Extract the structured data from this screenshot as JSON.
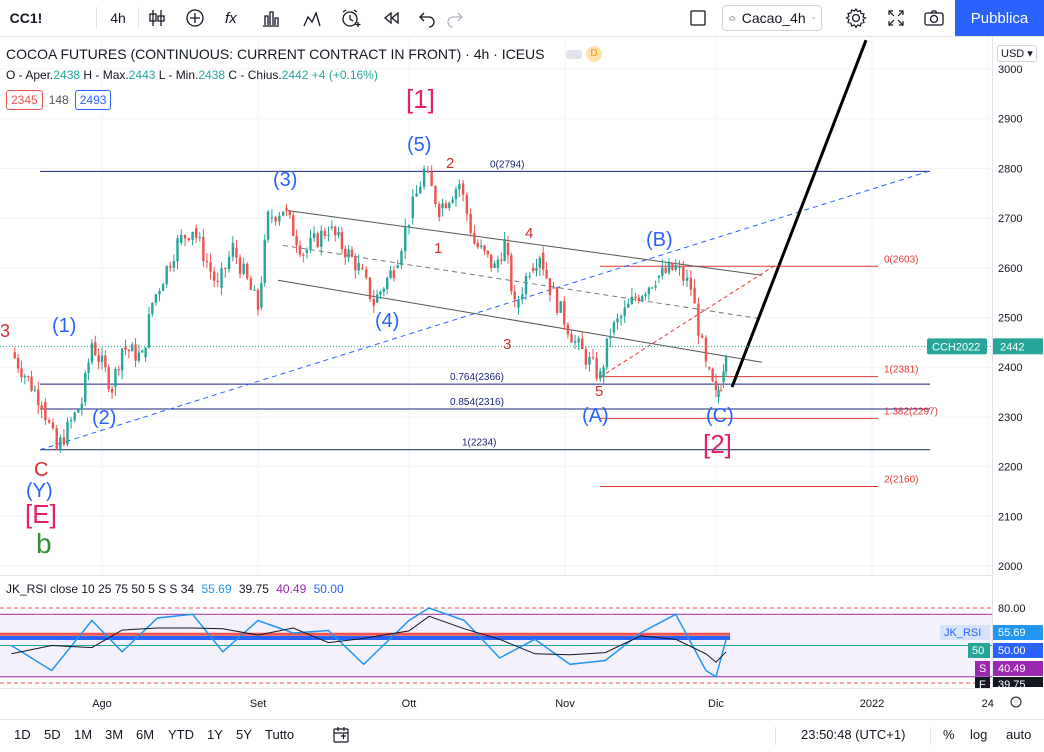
{
  "toolbar": {
    "symbol": "CC1!",
    "interval": "4h",
    "preset": "Cacao_4h",
    "publish": "Pubblica"
  },
  "legend": {
    "title": "COCOA FUTURES (CONTINUOUS: CURRENT CONTRACT IN FRONT) · 4h · ICEUS",
    "badge": "D",
    "open_label": "O - Aper.",
    "open": "2438",
    "high_label": "H - Max.",
    "high": "2443",
    "low_label": "L - Min.",
    "low": "2438",
    "close_label": "C - Chius.",
    "close": "2442",
    "change": "+4 (+0.16%)",
    "stat_left": "2345",
    "stat_mid": "148",
    "stat_right": "2493"
  },
  "currency": "USD",
  "rsi_legend": {
    "name": "JK_RSI close 10 25 75 50 5 S S 34",
    "v1": "55.69",
    "v2": "39.75",
    "v3": "40.49",
    "v4": "50.00"
  },
  "bottom": {
    "ranges": [
      "1D",
      "5D",
      "1M",
      "3M",
      "6M",
      "YTD",
      "1Y",
      "5Y",
      "Tutto"
    ],
    "clock": "23:50:48 (UTC+1)",
    "pct": "%",
    "log": "log",
    "auto": "auto"
  },
  "colors": {
    "up": "#26a69a",
    "down": "#ef5350",
    "wave_blue": "#2962ff",
    "wave_red": "#d32f2f",
    "wave_pink": "#e91e63",
    "wave_green": "#388e3c",
    "level_blue": "#1a237e",
    "level_red": "#e53935"
  },
  "chart_data": {
    "type": "candlestick",
    "symbol": "CC1!",
    "timeframe": "4h",
    "y_axis": {
      "ylim": [
        1980,
        3060
      ],
      "ticks": [
        2000,
        2100,
        2200,
        2300,
        2400,
        2500,
        2600,
        2700,
        2800,
        2900,
        3000
      ]
    },
    "x_axis": {
      "tick_labels": [
        "Ago",
        "Set",
        "Ott",
        "Nov",
        "Dic",
        "2022",
        "24"
      ]
    },
    "last_price": {
      "label": "CCH2022",
      "value": "2442"
    },
    "price_path": [
      {
        "date": "2021-07-14",
        "price": 2430
      },
      {
        "date": "2021-07-20",
        "price": 2330
      },
      {
        "date": "2021-07-23",
        "price": 2234
      },
      {
        "date": "2021-07-28",
        "price": 2330
      },
      {
        "date": "2021-07-30",
        "price": 2450
      },
      {
        "date": "2021-08-03",
        "price": 2360
      },
      {
        "date": "2021-08-05",
        "price": 2440
      },
      {
        "date": "2021-08-09",
        "price": 2420
      },
      {
        "date": "2021-08-11",
        "price": 2530
      },
      {
        "date": "2021-08-16",
        "price": 2650
      },
      {
        "date": "2021-08-19",
        "price": 2680
      },
      {
        "date": "2021-08-24",
        "price": 2560
      },
      {
        "date": "2021-08-27",
        "price": 2640
      },
      {
        "date": "2021-09-01",
        "price": 2520
      },
      {
        "date": "2021-09-03",
        "price": 2700
      },
      {
        "date": "2021-09-06",
        "price": 2720
      },
      {
        "date": "2021-09-10",
        "price": 2630
      },
      {
        "date": "2021-09-15",
        "price": 2680
      },
      {
        "date": "2021-09-21",
        "price": 2600
      },
      {
        "date": "2021-09-24",
        "price": 2530
      },
      {
        "date": "2021-09-28",
        "price": 2600
      },
      {
        "date": "2021-10-01",
        "price": 2700
      },
      {
        "date": "2021-10-04",
        "price": 2794
      },
      {
        "date": "2021-10-07",
        "price": 2720
      },
      {
        "date": "2021-10-11",
        "price": 2770
      },
      {
        "date": "2021-10-14",
        "price": 2650
      },
      {
        "date": "2021-10-18",
        "price": 2600
      },
      {
        "date": "2021-10-20",
        "price": 2650
      },
      {
        "date": "2021-10-22",
        "price": 2520
      },
      {
        "date": "2021-10-25",
        "price": 2600
      },
      {
        "date": "2021-10-27",
        "price": 2630
      },
      {
        "date": "2021-10-29",
        "price": 2560
      },
      {
        "date": "2021-11-03",
        "price": 2450
      },
      {
        "date": "2021-11-08",
        "price": 2380
      },
      {
        "date": "2021-11-10",
        "price": 2470
      },
      {
        "date": "2021-11-15",
        "price": 2540
      },
      {
        "date": "2021-11-19",
        "price": 2580
      },
      {
        "date": "2021-11-23",
        "price": 2600
      },
      {
        "date": "2021-11-26",
        "price": 2560
      },
      {
        "date": "2021-11-29",
        "price": 2400
      },
      {
        "date": "2021-12-01",
        "price": 2340
      },
      {
        "date": "2021-12-02",
        "price": 2370
      },
      {
        "date": "2021-12-03",
        "price": 2442
      }
    ],
    "rsi": {
      "name": "JK_RSI",
      "scale_labels": [
        "80.00"
      ],
      "price_labels": [
        {
          "label": "JK_RSI",
          "value": "55.69"
        },
        {
          "label": "50",
          "value": "50.00"
        },
        {
          "label": "S",
          "value": "40.49"
        },
        {
          "label": "F",
          "value": "39.75"
        }
      ],
      "series": [
        {
          "date": "2021-07-14",
          "value": 50
        },
        {
          "date": "2021-07-22",
          "value": 30
        },
        {
          "date": "2021-07-30",
          "value": 70
        },
        {
          "date": "2021-08-05",
          "value": 45
        },
        {
          "date": "2021-08-12",
          "value": 72
        },
        {
          "date": "2021-08-19",
          "value": 75
        },
        {
          "date": "2021-08-25",
          "value": 45
        },
        {
          "date": "2021-09-01",
          "value": 70
        },
        {
          "date": "2021-09-08",
          "value": 60
        },
        {
          "date": "2021-09-15",
          "value": 62
        },
        {
          "date": "2021-09-22",
          "value": 35
        },
        {
          "date": "2021-10-01",
          "value": 70
        },
        {
          "date": "2021-10-05",
          "value": 80
        },
        {
          "date": "2021-10-12",
          "value": 70
        },
        {
          "date": "2021-10-19",
          "value": 40
        },
        {
          "date": "2021-10-26",
          "value": 55
        },
        {
          "date": "2021-11-02",
          "value": 35
        },
        {
          "date": "2021-11-09",
          "value": 38
        },
        {
          "date": "2021-11-16",
          "value": 60
        },
        {
          "date": "2021-11-23",
          "value": 75
        },
        {
          "date": "2021-11-29",
          "value": 30
        },
        {
          "date": "2021-12-01",
          "value": 25
        },
        {
          "date": "2021-12-03",
          "value": 55
        }
      ]
    },
    "horizontal_levels": [
      {
        "label": "0(2794)",
        "value": 2794
      },
      {
        "label": "0.764(2366)",
        "value": 2366
      },
      {
        "label": "0.854(2316)",
        "value": 2316
      },
      {
        "label": "1(2234)",
        "value": 2234
      },
      {
        "label": "0(2603)",
        "value": 2603
      },
      {
        "label": "1(2381)",
        "value": 2381
      },
      {
        "label": "1.382(2297)",
        "value": 2297
      },
      {
        "label": "2(2160)",
        "value": 2160
      }
    ],
    "wave_labels": [
      "3",
      "(1)",
      "(2)",
      "(3)",
      "(4)",
      "(5)",
      "[1]",
      "2",
      "1",
      "4",
      "3",
      "5",
      "(A)",
      "(B)",
      "(C)",
      "[2]",
      "C",
      "(Y)",
      "[E]",
      "b"
    ]
  }
}
